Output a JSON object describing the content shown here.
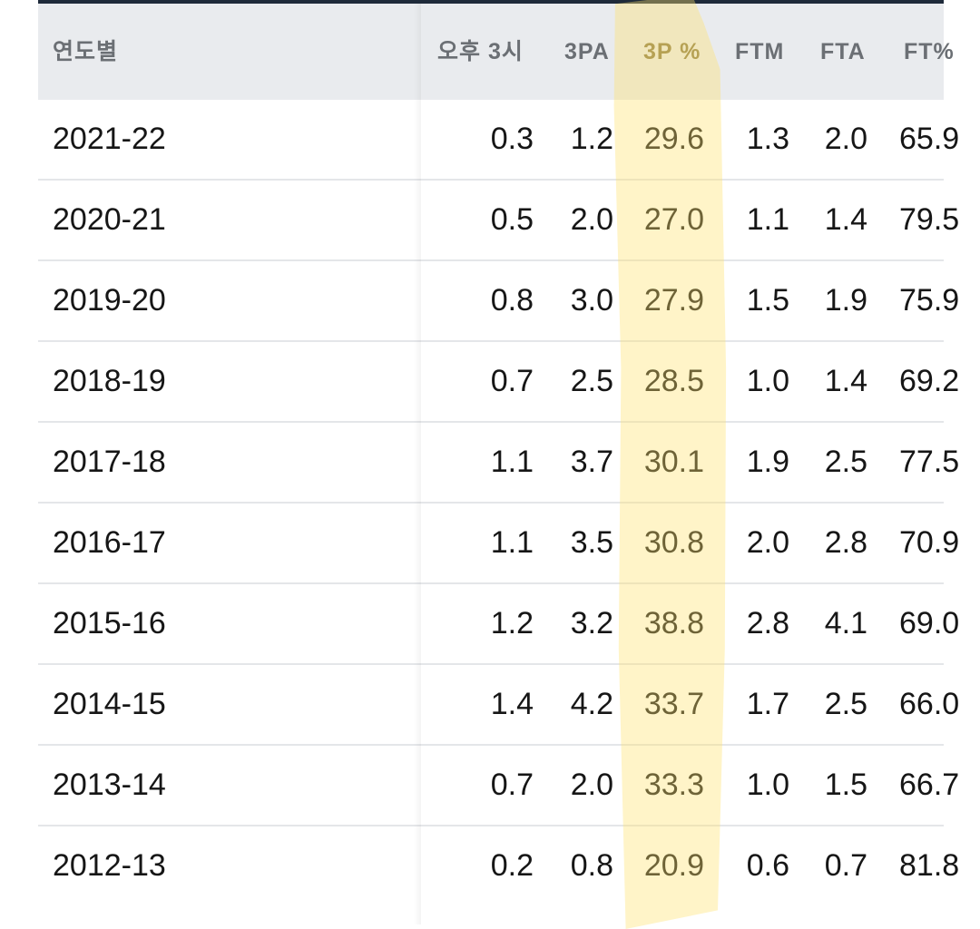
{
  "table": {
    "headers": [
      "연도별",
      "오후 3시",
      "3PA",
      "3P %",
      "FTM",
      "FTA",
      "FT%"
    ],
    "rows": [
      {
        "year": "2021-22",
        "c1": "0.3",
        "c2": "1.2",
        "c3": "29.6",
        "c4": "1.3",
        "c5": "2.0",
        "c6": "65.9"
      },
      {
        "year": "2020-21",
        "c1": "0.5",
        "c2": "2.0",
        "c3": "27.0",
        "c4": "1.1",
        "c5": "1.4",
        "c6": "79.5"
      },
      {
        "year": "2019-20",
        "c1": "0.8",
        "c2": "3.0",
        "c3": "27.9",
        "c4": "1.5",
        "c5": "1.9",
        "c6": "75.9"
      },
      {
        "year": "2018-19",
        "c1": "0.7",
        "c2": "2.5",
        "c3": "28.5",
        "c4": "1.0",
        "c5": "1.4",
        "c6": "69.2"
      },
      {
        "year": "2017-18",
        "c1": "1.1",
        "c2": "3.7",
        "c3": "30.1",
        "c4": "1.9",
        "c5": "2.5",
        "c6": "77.5"
      },
      {
        "year": "2016-17",
        "c1": "1.1",
        "c2": "3.5",
        "c3": "30.8",
        "c4": "2.0",
        "c5": "2.8",
        "c6": "70.9"
      },
      {
        "year": "2015-16",
        "c1": "1.2",
        "c2": "3.2",
        "c3": "38.8",
        "c4": "2.8",
        "c5": "4.1",
        "c6": "69.0"
      },
      {
        "year": "2014-15",
        "c1": "1.4",
        "c2": "4.2",
        "c3": "33.7",
        "c4": "1.7",
        "c5": "2.5",
        "c6": "66.0"
      },
      {
        "year": "2013-14",
        "c1": "0.7",
        "c2": "2.0",
        "c3": "33.3",
        "c4": "1.0",
        "c5": "1.5",
        "c6": "66.7"
      },
      {
        "year": "2012-13",
        "c1": "0.2",
        "c2": "0.8",
        "c3": "20.9",
        "c4": "0.6",
        "c5": "0.7",
        "c6": "81.8"
      }
    ]
  },
  "colors": {
    "header_bg": "#e9ebee",
    "highlight": "#ffe26e",
    "topbar": "#1e2a3a"
  }
}
